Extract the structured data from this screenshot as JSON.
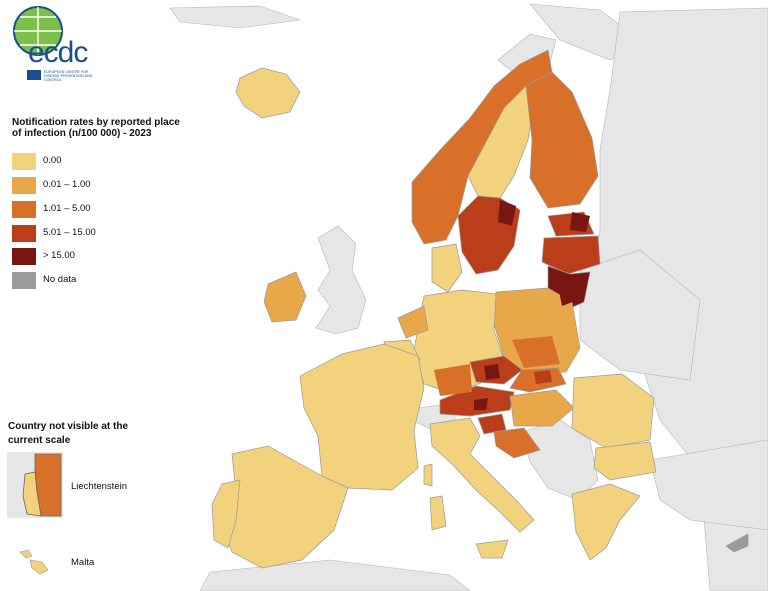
{
  "logo": {
    "text": "ecdc",
    "subtitle": "EUROPEAN CENTRE FOR DISEASE PREVENTION AND CONTROL"
  },
  "legend": {
    "title": "Notification rates by reported place of infection (n/100 000) - 2023",
    "items": [
      {
        "label": "0.00",
        "color": "#f2d27d"
      },
      {
        "label": "0.01 – 1.00",
        "color": "#e8a84a"
      },
      {
        "label": "1.01 – 5.00",
        "color": "#d9702a"
      },
      {
        "label": "5.01 – 15.00",
        "color": "#bb3e1b"
      },
      {
        "label": "> 15.00",
        "color": "#7a1612"
      },
      {
        "label": "No data",
        "color": "#9b9b9b"
      }
    ]
  },
  "inset": {
    "title": "Country not visible at the current scale",
    "liechtenstein": "Liechtenstein",
    "malta": "Malta"
  },
  "colors": {
    "sea": "#ffffff",
    "non_eu": "#e6e6e6",
    "border": "#9a9a9a"
  }
}
